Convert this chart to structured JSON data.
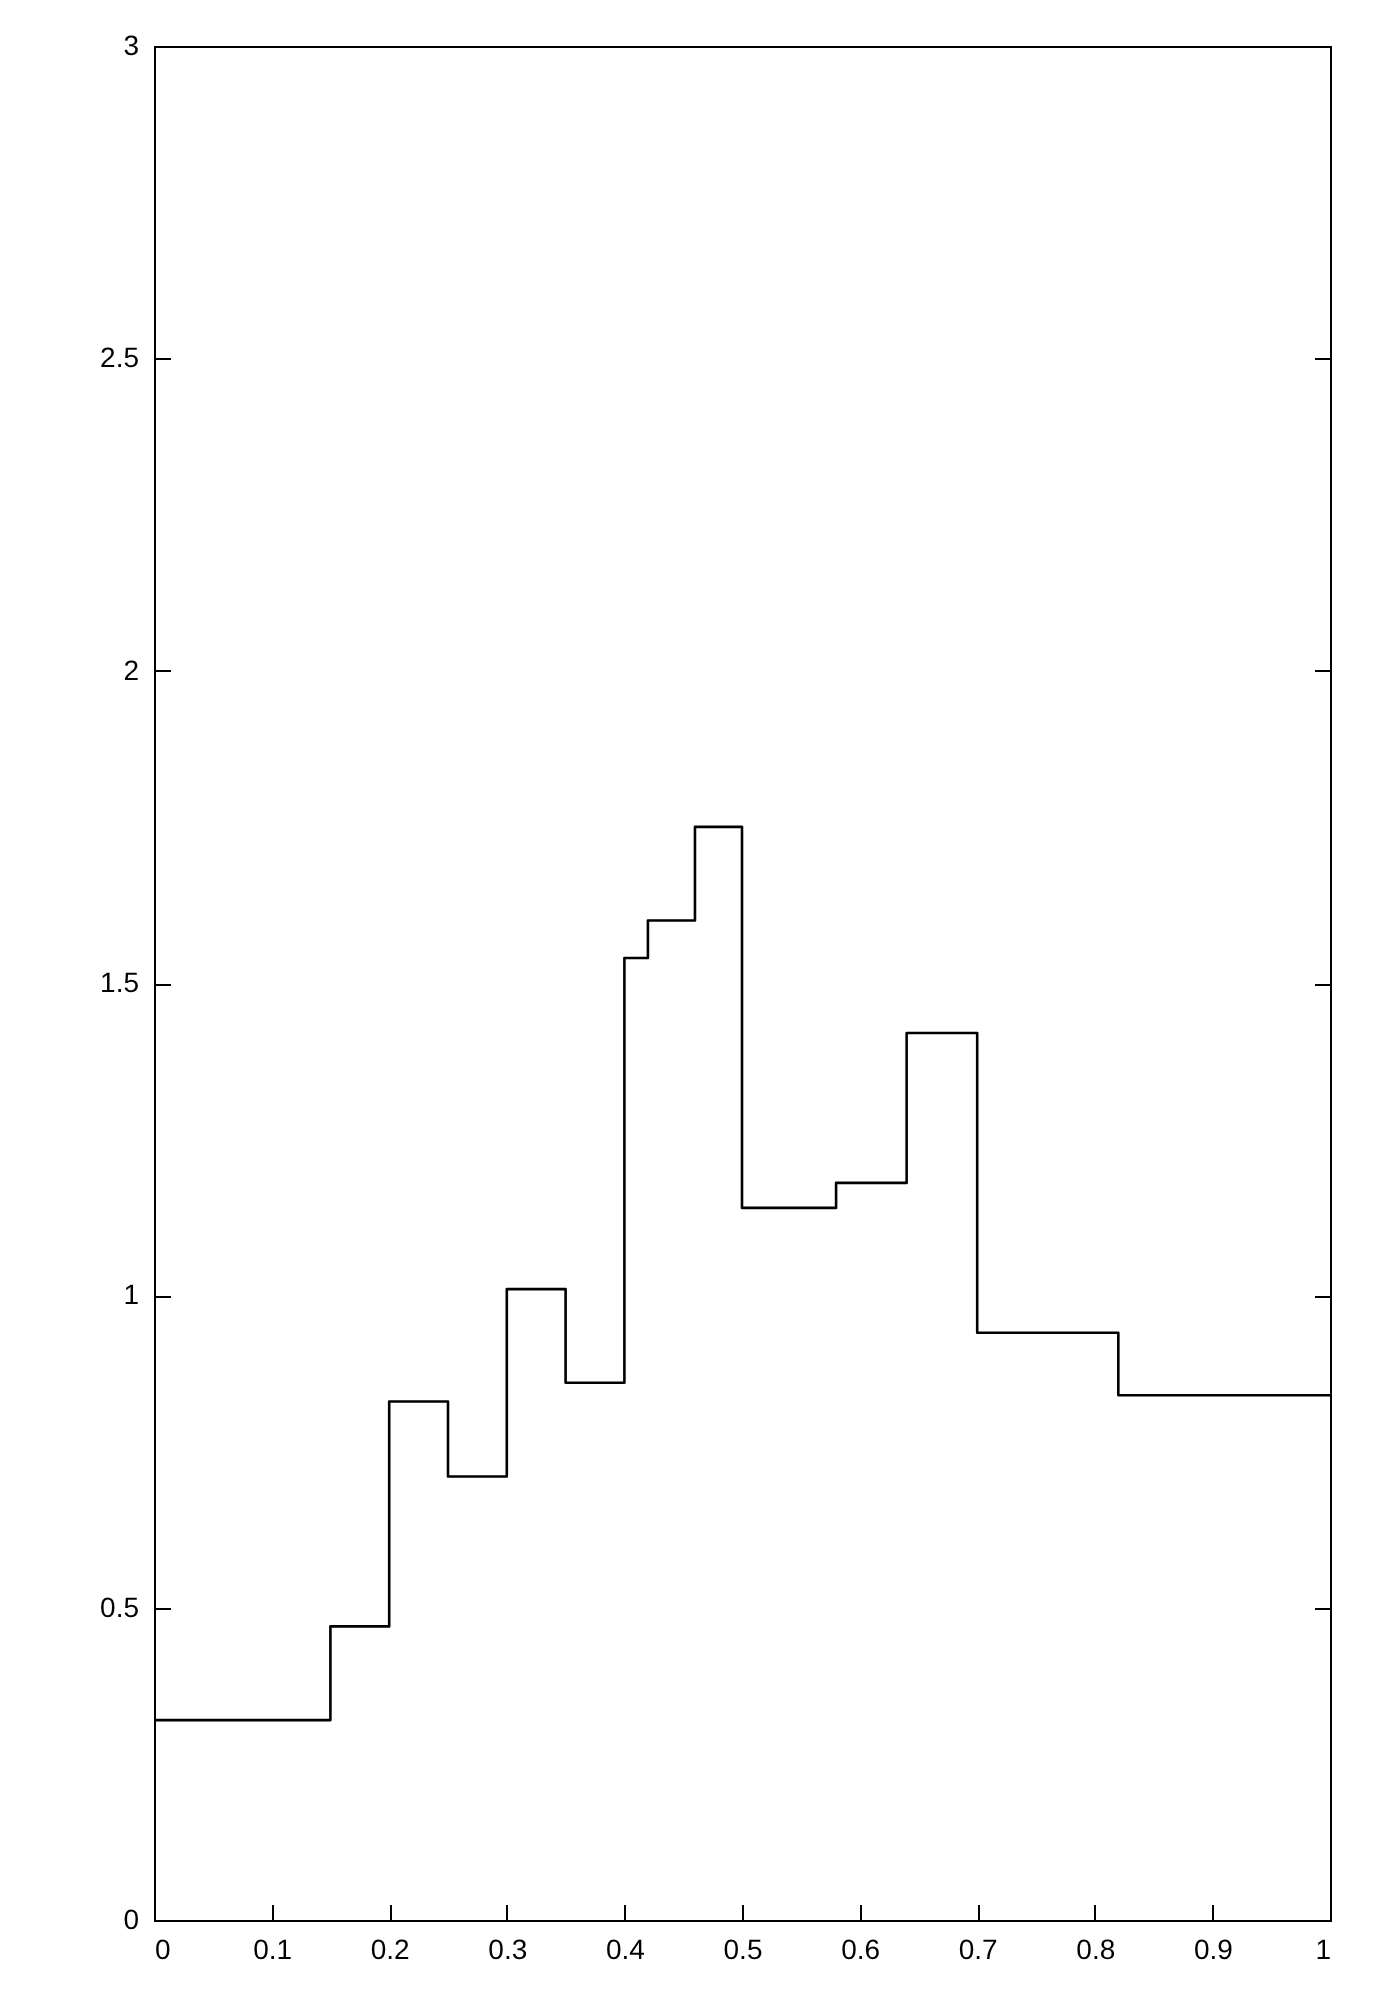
{
  "chart_data": {
    "type": "step",
    "x": [
      0,
      0.15,
      0.2,
      0.25,
      0.3,
      0.35,
      0.4,
      0.42,
      0.46,
      0.5,
      0.58,
      0.64,
      0.7,
      0.82,
      1
    ],
    "series": [
      {
        "color": "#000000",
        "values": [
          0.32,
          0.47,
          0.83,
          0.71,
          1.01,
          0.86,
          1.54,
          1.6,
          1.75,
          1.14,
          1.18,
          1.42,
          0.94,
          0.84,
          0.84
        ]
      }
    ],
    "xlim": [
      0,
      1
    ],
    "ylim": [
      0,
      3
    ],
    "xticks": [
      0,
      0.1,
      0.2,
      0.3,
      0.4,
      0.5,
      0.6,
      0.7,
      0.8,
      0.9,
      1
    ],
    "yticks": [
      0,
      0.5,
      1,
      1.5,
      2,
      2.5,
      3
    ],
    "grid": false,
    "legend": false
  }
}
